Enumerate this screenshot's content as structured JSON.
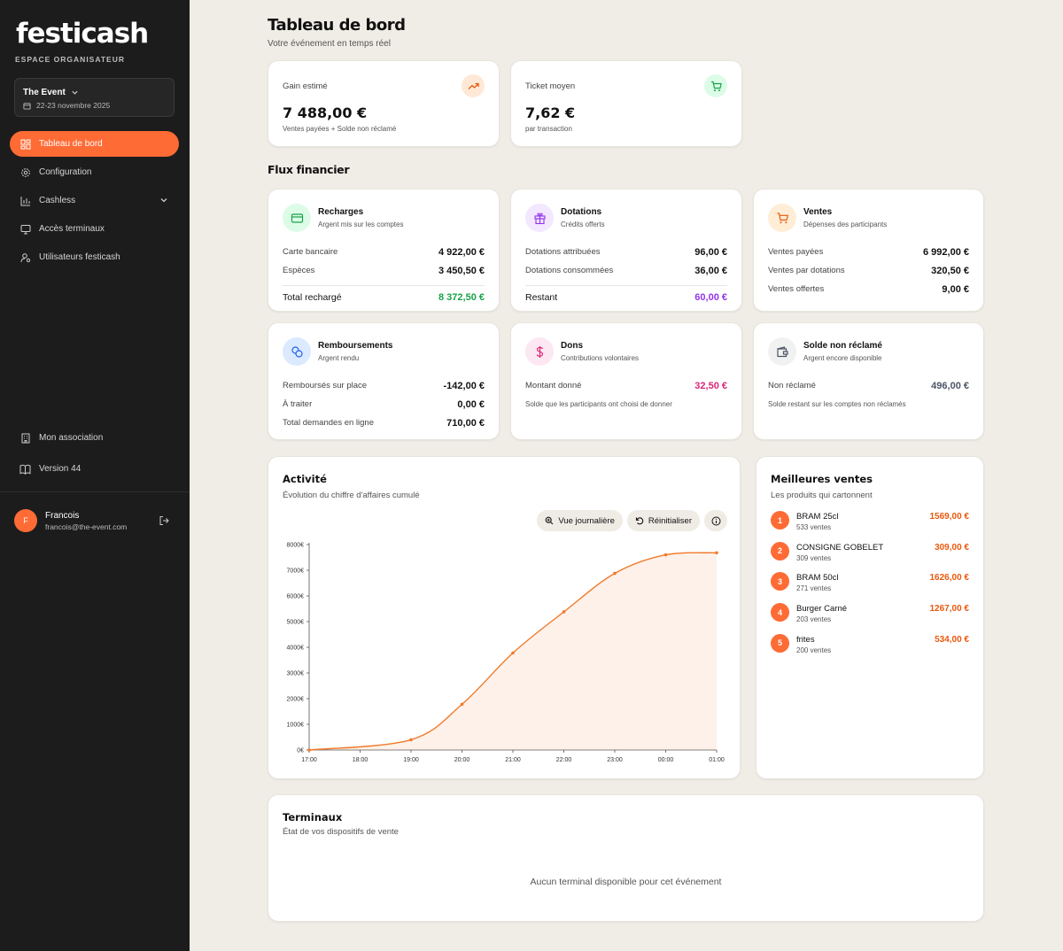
{
  "brand": {
    "name": "festicash",
    "subtitle": "ESPACE ORGANISATEUR",
    "accent": "#ff6b35"
  },
  "event": {
    "name": "The Event",
    "dates": "22-23 novembre 2025"
  },
  "nav": {
    "items": [
      {
        "label": "Tableau de bord",
        "icon": "dashboard-icon",
        "active": true
      },
      {
        "label": "Configuration",
        "icon": "gear-icon"
      },
      {
        "label": "Cashless",
        "icon": "bar-chart-icon"
      },
      {
        "label": "Accès terminaux",
        "icon": "monitor-icon"
      },
      {
        "label": "Utilisateurs festicash",
        "icon": "user-gear-icon"
      }
    ],
    "bottom": [
      {
        "label": "Mon association",
        "icon": "building-icon"
      },
      {
        "label": "Version 44",
        "icon": "book-icon"
      }
    ]
  },
  "user": {
    "initial": "F",
    "name": "Francois",
    "email": "francois@the-event.com"
  },
  "header": {
    "title": "Tableau de bord",
    "subtitle": "Votre événement en temps réel"
  },
  "stats": [
    {
      "label": "Gain estimé",
      "value": "7 488,00 €",
      "sub": "Ventes payées + Solde non réclamé",
      "icon": "trending-up-icon"
    },
    {
      "label": "Ticket moyen",
      "value": "7,62 €",
      "sub": "par transaction",
      "icon": "cart-icon"
    }
  ],
  "flux": {
    "title": "Flux financier",
    "cards": [
      {
        "title": "Recharges",
        "sub": "Argent mis sur les comptes",
        "icon": "credit-card-icon",
        "rows": [
          {
            "label": "Carte bancaire",
            "value": "4 922,00 €"
          },
          {
            "label": "Espèces",
            "value": "3 450,50 €"
          }
        ],
        "total": {
          "label": "Total rechargé",
          "value": "8 372,50 €",
          "color": "#16a34a"
        }
      },
      {
        "title": "Dotations",
        "sub": "Crédits offerts",
        "icon": "gift-icon",
        "rows": [
          {
            "label": "Dotations attribuées",
            "value": "96,00 €"
          },
          {
            "label": "Dotations consommées",
            "value": "36,00 €"
          }
        ],
        "total": {
          "label": "Restant",
          "value": "60,00 €",
          "color": "#9333ea"
        }
      },
      {
        "title": "Ventes",
        "sub": "Dépenses des participants",
        "icon": "cart-icon",
        "rows": [
          {
            "label": "Ventes payées",
            "value": "6 992,00 €"
          },
          {
            "label": "Ventes par dotations",
            "value": "320,50 €"
          },
          {
            "label": "Ventes offertes",
            "value": "9,00 €"
          }
        ]
      },
      {
        "title": "Remboursements",
        "sub": "Argent rendu",
        "icon": "coins-icon",
        "rows": [
          {
            "label": "Remboursés sur place",
            "value": "-142,00 €"
          },
          {
            "label": "À traiter",
            "value": "0,00 €"
          },
          {
            "label": "Total demandes en ligne",
            "value": "710,00 €"
          }
        ]
      },
      {
        "title": "Dons",
        "sub": "Contributions volontaires",
        "icon": "dollar-icon",
        "rows": [
          {
            "label": "Montant donné",
            "value": "32,50 €",
            "color": "#db2777"
          }
        ],
        "note": "Solde que les participants ont choisi de donner"
      },
      {
        "title": "Solde non réclamé",
        "sub": "Argent encore disponible",
        "icon": "wallet-icon",
        "rows": [
          {
            "label": "Non réclamé",
            "value": "496,00 €",
            "color": "#4b5563"
          }
        ],
        "note": "Solde restant sur les comptes non réclamés"
      }
    ]
  },
  "activity": {
    "title": "Activité",
    "subtitle": "Évolution du chiffre d'affaires cumulé",
    "buttons": {
      "daily": "Vue journalière",
      "reset": "Réinitialiser"
    }
  },
  "chart_data": {
    "type": "area",
    "title": "",
    "x": [
      "17:00",
      "18:00",
      "19:00",
      "20:00",
      "21:00",
      "22:00",
      "23:00",
      "00:00",
      "01:00"
    ],
    "y_ticks": [
      "0€",
      "1000€",
      "2000€",
      "3000€",
      "4000€",
      "5000€",
      "6000€",
      "7000€",
      "8000€"
    ],
    "ylim": [
      0,
      8000
    ],
    "points": [
      {
        "x": 0,
        "y": 0
      },
      {
        "x": 2,
        "y": 400
      },
      {
        "x": 3,
        "y": 1780
      },
      {
        "x": 4,
        "y": 3780
      },
      {
        "x": 5,
        "y": 5380
      },
      {
        "x": 6,
        "y": 6880
      },
      {
        "x": 7,
        "y": 7600
      },
      {
        "x": 8,
        "y": 7680
      }
    ],
    "grid": false,
    "color": "#f07a2a"
  },
  "top_sales": {
    "title": "Meilleures ventes",
    "subtitle": "Les produits qui cartonnent",
    "items": [
      {
        "rank": "1",
        "name": "BRAM 25cl",
        "count": "533 ventes",
        "amount": "1569,00 €"
      },
      {
        "rank": "2",
        "name": "CONSIGNE GOBELET",
        "count": "309 ventes",
        "amount": "309,00 €"
      },
      {
        "rank": "3",
        "name": "BRAM 50cl",
        "count": "271 ventes",
        "amount": "1626,00 €"
      },
      {
        "rank": "4",
        "name": "Burger Carné",
        "count": "203 ventes",
        "amount": "1267,00 €"
      },
      {
        "rank": "5",
        "name": "frites",
        "count": "200 ventes",
        "amount": "534,00 €"
      }
    ]
  },
  "terminals": {
    "title": "Terminaux",
    "subtitle": "État de vos dispositifs de vente",
    "empty": "Aucun terminal disponible pour cet événement"
  }
}
